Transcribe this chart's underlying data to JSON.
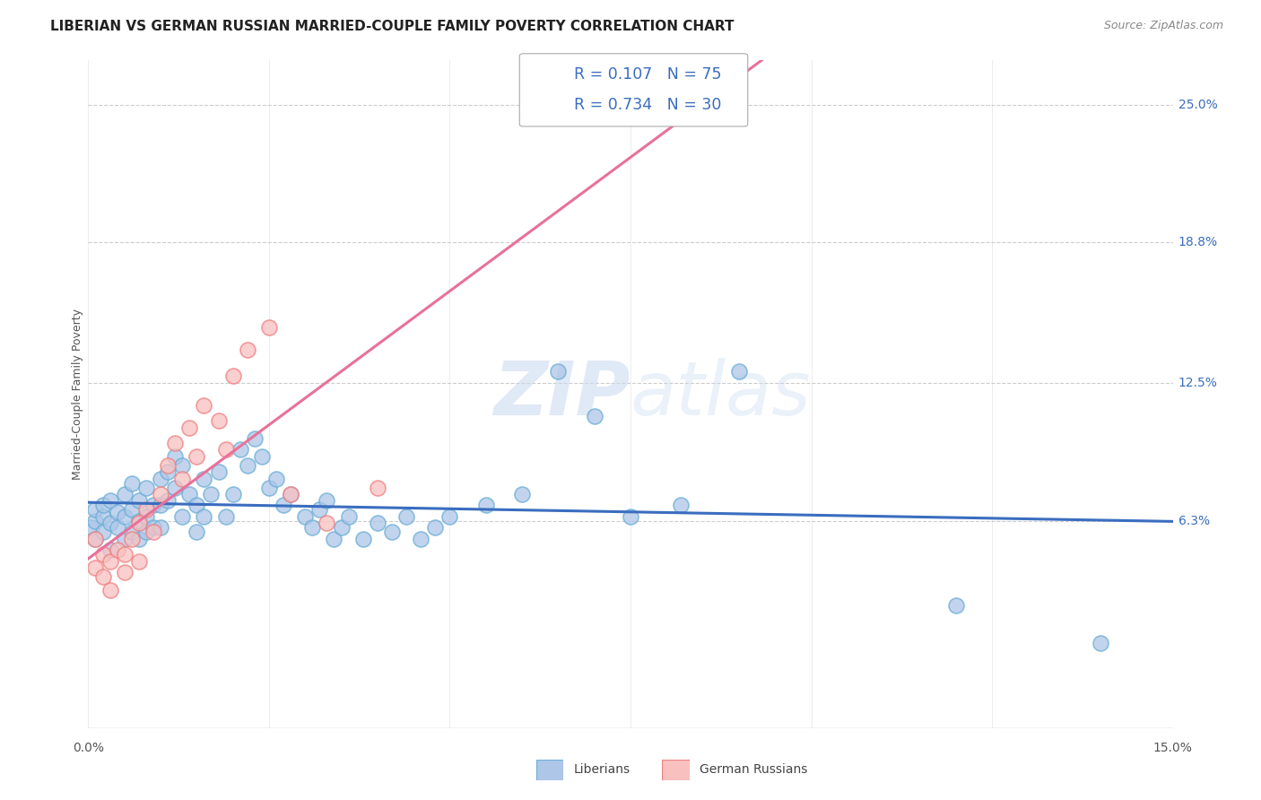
{
  "title": "LIBERIAN VS GERMAN RUSSIAN MARRIED-COUPLE FAMILY POVERTY CORRELATION CHART",
  "source": "Source: ZipAtlas.com",
  "ylabel": "Married-Couple Family Poverty",
  "ytick_labels": [
    "25.0%",
    "18.8%",
    "12.5%",
    "6.3%"
  ],
  "ytick_values": [
    0.25,
    0.188,
    0.125,
    0.063
  ],
  "xtick_labels": [
    "0.0%",
    "15.0%"
  ],
  "xtick_values": [
    0.0,
    0.15
  ],
  "xlim": [
    0.0,
    0.15
  ],
  "ylim": [
    -0.03,
    0.27
  ],
  "watermark_zip": "ZIP",
  "watermark_atlas": "atlas",
  "legend_lib_R": "0.107",
  "legend_lib_N": "75",
  "legend_gr_R": "0.734",
  "legend_gr_N": "30",
  "lib_fill": "#aec6e8",
  "lib_edge": "#6baed6",
  "gr_fill": "#f9c0c0",
  "gr_edge": "#f08080",
  "lib_line_color": "#3a6dbf",
  "gr_line_color": "#e8719a",
  "tick_color": "#3a6dbf",
  "background_color": "#ffffff",
  "grid_color": "#cccccc",
  "title_fontsize": 11,
  "axis_label_fontsize": 9,
  "tick_fontsize": 10,
  "lib_x": [
    0.0005,
    0.001,
    0.001,
    0.001,
    0.002,
    0.002,
    0.002,
    0.003,
    0.003,
    0.003,
    0.004,
    0.004,
    0.005,
    0.005,
    0.005,
    0.006,
    0.006,
    0.006,
    0.007,
    0.007,
    0.007,
    0.008,
    0.008,
    0.008,
    0.009,
    0.009,
    0.01,
    0.01,
    0.01,
    0.011,
    0.011,
    0.012,
    0.012,
    0.013,
    0.013,
    0.014,
    0.015,
    0.015,
    0.016,
    0.016,
    0.017,
    0.018,
    0.019,
    0.02,
    0.021,
    0.022,
    0.023,
    0.024,
    0.025,
    0.026,
    0.027,
    0.028,
    0.03,
    0.031,
    0.032,
    0.033,
    0.034,
    0.035,
    0.036,
    0.038,
    0.04,
    0.042,
    0.044,
    0.046,
    0.048,
    0.05,
    0.055,
    0.06,
    0.065,
    0.07,
    0.075,
    0.082,
    0.09,
    0.12,
    0.14
  ],
  "lib_y": [
    0.06,
    0.063,
    0.068,
    0.055,
    0.065,
    0.07,
    0.058,
    0.072,
    0.062,
    0.05,
    0.067,
    0.06,
    0.075,
    0.065,
    0.055,
    0.08,
    0.068,
    0.058,
    0.072,
    0.063,
    0.055,
    0.078,
    0.065,
    0.058,
    0.07,
    0.06,
    0.082,
    0.07,
    0.06,
    0.085,
    0.072,
    0.092,
    0.078,
    0.088,
    0.065,
    0.075,
    0.07,
    0.058,
    0.082,
    0.065,
    0.075,
    0.085,
    0.065,
    0.075,
    0.095,
    0.088,
    0.1,
    0.092,
    0.078,
    0.082,
    0.07,
    0.075,
    0.065,
    0.06,
    0.068,
    0.072,
    0.055,
    0.06,
    0.065,
    0.055,
    0.062,
    0.058,
    0.065,
    0.055,
    0.06,
    0.065,
    0.07,
    0.075,
    0.13,
    0.11,
    0.065,
    0.07,
    0.13,
    0.025,
    0.008
  ],
  "gr_x": [
    0.001,
    0.001,
    0.002,
    0.002,
    0.003,
    0.003,
    0.004,
    0.005,
    0.005,
    0.006,
    0.007,
    0.007,
    0.008,
    0.009,
    0.01,
    0.011,
    0.012,
    0.013,
    0.014,
    0.015,
    0.016,
    0.018,
    0.019,
    0.02,
    0.022,
    0.025,
    0.028,
    0.033,
    0.04,
    0.076
  ],
  "gr_y": [
    0.055,
    0.042,
    0.048,
    0.038,
    0.045,
    0.032,
    0.05,
    0.04,
    0.048,
    0.055,
    0.062,
    0.045,
    0.068,
    0.058,
    0.075,
    0.088,
    0.098,
    0.082,
    0.105,
    0.092,
    0.115,
    0.108,
    0.095,
    0.128,
    0.14,
    0.15,
    0.075,
    0.062,
    0.078,
    0.25
  ]
}
